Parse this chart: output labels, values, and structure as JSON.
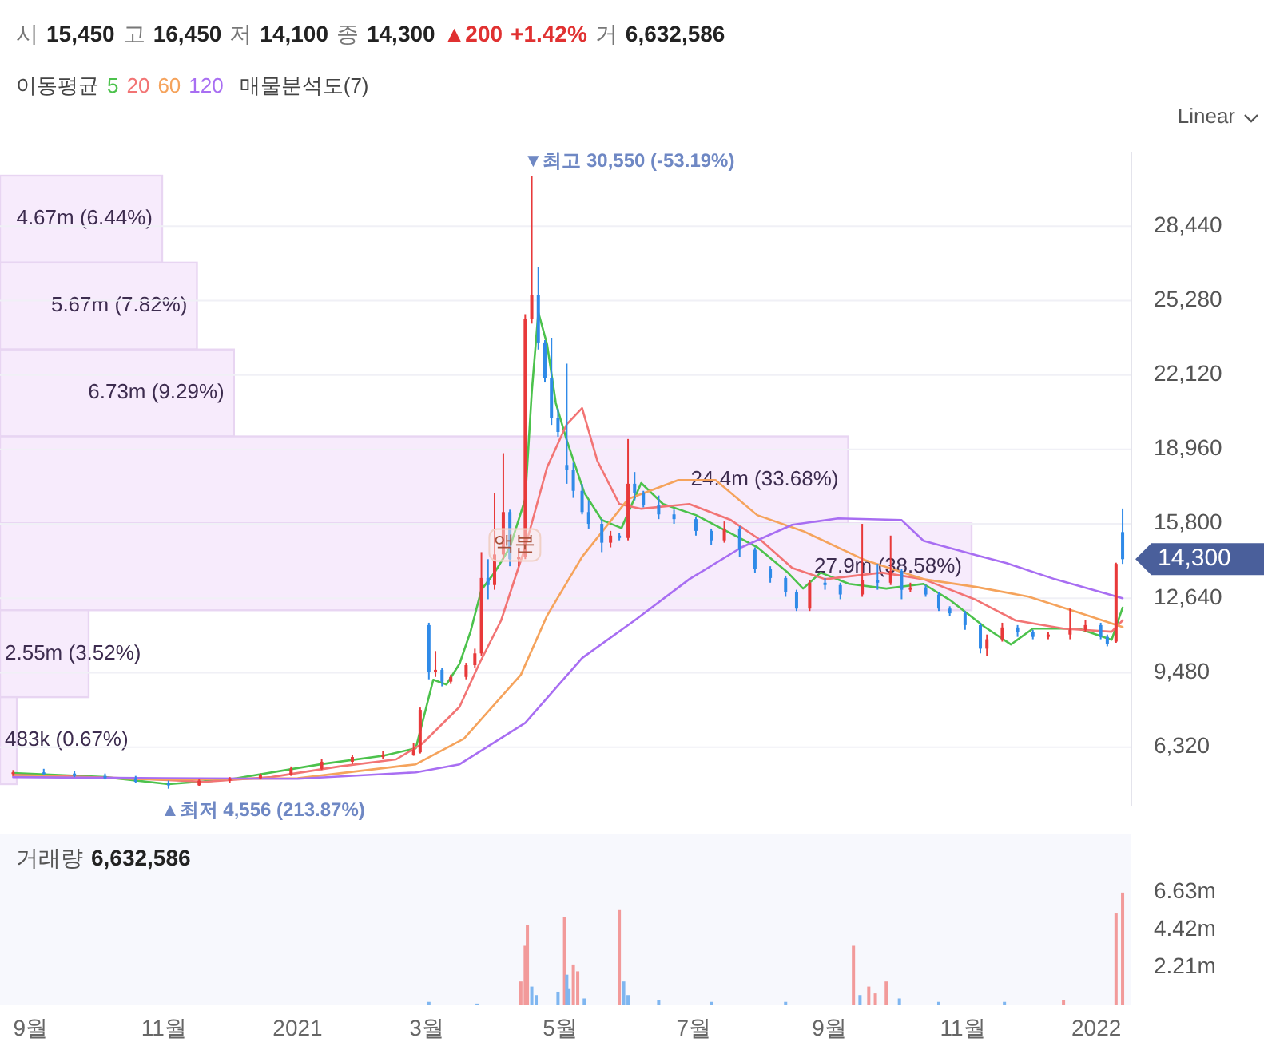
{
  "chart_data": [
    {
      "type": "candlestick",
      "subtitle": "시 15,450 고 16,450 저 14,100 종 14,300 ▲200 +1.42% 거 6,632,586",
      "legend_title": "이동평균",
      "legend": "top left",
      "x": [
        "2020-08-24",
        "2020-09-07",
        "2020-09-21",
        "2020-10-05",
        "2020-10-19",
        "2020-11-03",
        "2020-11-17",
        "2020-12-01",
        "2020-12-15",
        "2020-12-29",
        "2021-01-12",
        "2021-01-26",
        "2021-02-09",
        "2021-02-23",
        "2021-02-26",
        "2021-03-02",
        "2021-03-05",
        "2021-03-08",
        "2021-03-12",
        "2021-03-19",
        "2021-03-23",
        "2021-03-26",
        "2021-03-29",
        "2021-04-01",
        "2021-04-05",
        "2021-04-08",
        "2021-04-12",
        "2021-04-15",
        "2021-04-18",
        "2021-04-21",
        "2021-04-24",
        "2021-04-27",
        "2021-04-30",
        "2021-05-04",
        "2021-05-07",
        "2021-05-11",
        "2021-05-14",
        "2021-05-20",
        "2021-05-24",
        "2021-05-28",
        "2021-06-01",
        "2021-06-04",
        "2021-06-08",
        "2021-06-15",
        "2021-06-22",
        "2021-07-02",
        "2021-07-09",
        "2021-07-15",
        "2021-07-22",
        "2021-07-29",
        "2021-08-05",
        "2021-08-12",
        "2021-08-17",
        "2021-08-23",
        "2021-08-30",
        "2021-09-06",
        "2021-09-16",
        "2021-09-23",
        "2021-09-29",
        "2021-10-04",
        "2021-10-08",
        "2021-10-15",
        "2021-10-21",
        "2021-10-26",
        "2021-11-02",
        "2021-11-09",
        "2021-11-12",
        "2021-11-19",
        "2021-11-26",
        "2021-12-03",
        "2021-12-10",
        "2021-12-20",
        "2021-12-27",
        "2022-01-03",
        "2022-01-06",
        "2022-01-10",
        "2022-01-13"
      ],
      "ohlc": [
        [
          5200,
          5350,
          5100,
          5250
        ],
        [
          5250,
          5400,
          5150,
          5200
        ],
        [
          5200,
          5300,
          5050,
          5100
        ],
        [
          5100,
          5200,
          4950,
          5000
        ],
        [
          5000,
          5100,
          4800,
          4850
        ],
        [
          4800,
          4900,
          4556,
          4700
        ],
        [
          4700,
          4950,
          4650,
          4900
        ],
        [
          4900,
          5050,
          4800,
          5000
        ],
        [
          5000,
          5200,
          4950,
          5150
        ],
        [
          5150,
          5500,
          5100,
          5400
        ],
        [
          5400,
          5800,
          5350,
          5700
        ],
        [
          5700,
          6000,
          5600,
          5900
        ],
        [
          5900,
          6150,
          5800,
          6000
        ],
        [
          6000,
          6500,
          5950,
          6200
        ],
        [
          6100,
          8000,
          6050,
          7900
        ],
        [
          11500,
          11600,
          9200,
          9500
        ],
        [
          9500,
          10400,
          9300,
          9600
        ],
        [
          9600,
          9700,
          8900,
          9100
        ],
        [
          9100,
          9400,
          9000,
          9300
        ],
        [
          9300,
          9900,
          9200,
          9800
        ],
        [
          9800,
          10500,
          9700,
          10300
        ],
        [
          10300,
          14600,
          10200,
          13500
        ],
        [
          13500,
          14300,
          12600,
          13200
        ],
        [
          13200,
          17100,
          13000,
          14500
        ],
        [
          14500,
          18800,
          14300,
          16300
        ],
        [
          16300,
          16400,
          14000,
          14300
        ],
        [
          14300,
          14700,
          14000,
          14400
        ],
        [
          14400,
          24700,
          14300,
          24500
        ],
        [
          24500,
          30550,
          24300,
          25500
        ],
        [
          25500,
          26700,
          23200,
          23500
        ],
        [
          23500,
          23600,
          21800,
          22000
        ],
        [
          22000,
          23700,
          20000,
          20300
        ],
        [
          20300,
          20700,
          19500,
          19700
        ],
        [
          18300,
          22600,
          17500,
          18100
        ],
        [
          18100,
          18400,
          16900,
          17200
        ],
        [
          17200,
          17500,
          16200,
          16300
        ],
        [
          16300,
          16800,
          15600,
          15800
        ],
        [
          15800,
          16000,
          14600,
          15000
        ],
        [
          15000,
          15500,
          14800,
          15300
        ],
        [
          15300,
          15400,
          15100,
          15200
        ],
        [
          15200,
          19400,
          15100,
          17500
        ],
        [
          17500,
          18000,
          16800,
          17100
        ],
        [
          17100,
          17200,
          16500,
          16600
        ],
        [
          16600,
          17000,
          16000,
          16200
        ],
        [
          16200,
          16400,
          15800,
          16000
        ],
        [
          16000,
          16100,
          15300,
          15500
        ],
        [
          15500,
          15600,
          14900,
          15100
        ],
        [
          15100,
          15900,
          15000,
          15600
        ],
        [
          15600,
          15700,
          14400,
          14700
        ],
        [
          14700,
          14800,
          13700,
          13900
        ],
        [
          13900,
          14000,
          13300,
          13500
        ],
        [
          13500,
          13600,
          12700,
          12900
        ],
        [
          12900,
          13000,
          12100,
          12200
        ],
        [
          12200,
          13400,
          12100,
          13300
        ],
        [
          13300,
          13500,
          13000,
          13200
        ],
        [
          13200,
          13300,
          12600,
          12800
        ],
        [
          12800,
          15800,
          12700,
          13400
        ],
        [
          13400,
          14100,
          13000,
          13300
        ],
        [
          13300,
          15300,
          13200,
          13800
        ],
        [
          13800,
          13900,
          12600,
          13000
        ],
        [
          13000,
          13300,
          12900,
          13100
        ],
        [
          13100,
          13200,
          12700,
          12800
        ],
        [
          12800,
          12900,
          12100,
          12200
        ],
        [
          12200,
          12300,
          11900,
          12000
        ],
        [
          12000,
          12100,
          11300,
          11500
        ],
        [
          11500,
          11600,
          10300,
          10500
        ],
        [
          10500,
          11100,
          10200,
          10900
        ],
        [
          10900,
          11600,
          10800,
          11400
        ],
        [
          11400,
          11500,
          11000,
          11200
        ],
        [
          11200,
          11300,
          10900,
          11000
        ],
        [
          11000,
          11200,
          10900,
          11100
        ],
        [
          11100,
          12200,
          10900,
          11300
        ],
        [
          11300,
          11700,
          11200,
          11500
        ],
        [
          11500,
          11600,
          10900,
          11000
        ],
        [
          11000,
          11100,
          10600,
          10700
        ],
        [
          10800,
          14150,
          10750,
          14100
        ],
        [
          15450,
          16450,
          14100,
          14300
        ]
      ],
      "series": [
        {
          "name": "5",
          "type": "line",
          "color": "#4cc24c",
          "x": [
            "2020-08-24",
            "2020-10-05",
            "2020-11-03",
            "2020-12-01",
            "2021-01-12",
            "2021-02-09",
            "2021-02-24",
            "2021-03-04",
            "2021-03-10",
            "2021-03-16",
            "2021-03-21",
            "2021-03-26",
            "2021-04-01",
            "2021-04-08",
            "2021-04-15",
            "2021-04-18",
            "2021-04-21",
            "2021-04-25",
            "2021-04-29",
            "2021-05-04",
            "2021-05-12",
            "2021-05-20",
            "2021-05-29",
            "2021-06-07",
            "2021-06-17",
            "2021-07-02",
            "2021-07-16",
            "2021-07-30",
            "2021-08-13",
            "2021-08-20",
            "2021-08-28",
            "2021-09-10",
            "2021-09-27",
            "2021-10-14",
            "2021-10-26",
            "2021-11-11",
            "2021-11-23",
            "2021-12-03",
            "2021-12-24",
            "2022-01-08",
            "2022-01-13"
          ],
          "values": [
            5220,
            5050,
            4750,
            4950,
            5600,
            5950,
            6270,
            9180,
            8980,
            9860,
            11220,
            13000,
            13730,
            14800,
            16850,
            21390,
            24780,
            23420,
            20920,
            19350,
            17120,
            15960,
            15620,
            17530,
            16640,
            16170,
            15490,
            14810,
            13730,
            13050,
            13730,
            13250,
            13050,
            13250,
            12570,
            11420,
            10680,
            11350,
            11350,
            10880,
            12240
          ]
        },
        {
          "name": "20",
          "type": "line",
          "color": "#f27474",
          "x": [
            "2020-08-24",
            "2020-10-15",
            "2020-11-20",
            "2020-12-20",
            "2021-01-20",
            "2021-02-15",
            "2021-02-27",
            "2021-03-16",
            "2021-03-25",
            "2021-04-04",
            "2021-04-15",
            "2021-04-25",
            "2021-05-04",
            "2021-05-11",
            "2021-05-18",
            "2021-05-28",
            "2021-06-07",
            "2021-06-29",
            "2021-07-18",
            "2021-08-01",
            "2021-08-15",
            "2021-08-30",
            "2021-09-25",
            "2021-10-14",
            "2021-11-07",
            "2021-11-25",
            "2021-12-17",
            "2022-01-08",
            "2022-01-13"
          ],
          "values": [
            5150,
            5000,
            4850,
            5050,
            5500,
            5800,
            6470,
            8030,
            9860,
            11700,
            14810,
            18200,
            20030,
            20710,
            18470,
            16640,
            16440,
            16640,
            15960,
            15080,
            13930,
            13450,
            13730,
            13450,
            12570,
            11700,
            11350,
            11220,
            11700
          ]
        },
        {
          "name": "60",
          "type": "line",
          "color": "#f5a35c",
          "x": [
            "2020-08-24",
            "2020-11-01",
            "2021-01-01",
            "2021-02-24",
            "2021-03-18",
            "2021-04-13",
            "2021-04-25",
            "2021-05-11",
            "2021-06-01",
            "2021-06-24",
            "2021-07-11",
            "2021-07-30",
            "2021-08-20",
            "2021-09-17",
            "2021-10-14",
            "2021-11-07",
            "2021-12-01",
            "2021-12-24",
            "2022-01-13"
          ],
          "values": [
            5100,
            4950,
            5000,
            5590,
            6680,
            9390,
            11900,
            14400,
            16850,
            17660,
            17660,
            16170,
            15490,
            14270,
            13450,
            13120,
            12710,
            12030,
            11420
          ]
        },
        {
          "name": "120",
          "type": "line",
          "color": "#a86ef2",
          "x": [
            "2020-08-24",
            "2020-11-01",
            "2021-01-01",
            "2021-02-24",
            "2021-03-16",
            "2021-04-15",
            "2021-05-11",
            "2021-06-04",
            "2021-06-29",
            "2021-07-23",
            "2021-08-15",
            "2021-09-05",
            "2021-10-04",
            "2021-10-14",
            "2021-11-07",
            "2021-11-21",
            "2021-12-13",
            "2022-01-13"
          ],
          "values": [
            5050,
            5000,
            4980,
            5250,
            5590,
            7350,
            10100,
            11700,
            13450,
            14810,
            15760,
            16030,
            15960,
            15080,
            14470,
            14130,
            13450,
            12640
          ]
        }
      ],
      "xlim": [
        "2020-08-18",
        "2022-01-17"
      ],
      "ylim": [
        3800,
        31600
      ],
      "yticks": [
        {
          "value": 6320,
          "label": "6,320"
        },
        {
          "value": 9480,
          "label": "9,480"
        },
        {
          "value": 12640,
          "label": "12,640"
        },
        {
          "value": 15800,
          "label": "15,800"
        },
        {
          "value": 18960,
          "label": "18,960"
        },
        {
          "value": 22120,
          "label": "22,120"
        },
        {
          "value": 25280,
          "label": "25,280"
        },
        {
          "value": 28440,
          "label": "28,440"
        }
      ],
      "grid": "y",
      "tick_labels": "y",
      "annotations": [
        {
          "text": "▼최고 30,550 (-53.19%)",
          "x": "2021-04-18",
          "y": 30550
        },
        {
          "text": "▲최저 4,556 (213.87%)",
          "x": "2020-11-03",
          "y": 4556
        },
        {
          "text": "액분",
          "x": "2021-04-11",
          "y": 14900
        },
        {
          "text": "14,300",
          "x": "2022-01-13",
          "y": 14300
        },
        "Linear"
      ]
    },
    {
      "type": "bar",
      "orientation": "horizontal",
      "title": "매물분석도(7)",
      "color": "#f7ebfc",
      "categories": [
        null,
        null,
        null,
        null,
        null,
        null,
        null
      ],
      "values": [
        6.44,
        7.82,
        9.29,
        33.68,
        38.58,
        3.52,
        0.67
      ],
      "value_labels": [
        "4.67m (6.44%)",
        "5.67m (7.82%)",
        "6.73m (9.29%)",
        "24.4m (33.68%)",
        "27.9m (38.58%)",
        "2.55m (3.52%)",
        "483k (0.67%)"
      ]
    },
    {
      "type": "bar",
      "title": "거래량 6,632,586",
      "x": [
        "2021-03-02",
        "2021-03-24",
        "2021-04-13",
        "2021-04-15",
        "2021-04-16",
        "2021-04-18",
        "2021-04-20",
        "2021-04-30",
        "2021-05-03",
        "2021-05-04",
        "2021-05-05",
        "2021-05-07",
        "2021-05-09",
        "2021-05-12",
        "2021-05-28",
        "2021-05-30",
        "2021-06-01",
        "2021-06-15",
        "2021-07-09",
        "2021-08-12",
        "2021-09-12",
        "2021-09-15",
        "2021-09-19",
        "2021-09-22",
        "2021-09-27",
        "2021-10-03",
        "2021-10-21",
        "2021-11-20",
        "2021-12-17",
        "2022-01-10",
        "2022-01-13"
      ],
      "values": [
        0.2,
        0.1,
        1.4,
        3.5,
        4.7,
        1.1,
        0.6,
        0.8,
        5.2,
        1.8,
        1.0,
        2.4,
        2.0,
        0.4,
        5.6,
        1.4,
        0.6,
        0.3,
        0.2,
        0.2,
        3.5,
        0.6,
        1.1,
        0.7,
        1.4,
        0.4,
        0.2,
        0.2,
        0.3,
        5.4,
        6.63
      ],
      "colors": [
        "#7fb6f0",
        "#7fb6f0",
        "#f29a9a",
        "#f29a9a",
        "#f29a9a",
        "#7fb6f0",
        "#7fb6f0",
        "#7fb6f0",
        "#f29a9a",
        "#7fb6f0",
        "#7fb6f0",
        "#f29a9a",
        "#f29a9a",
        "#7fb6f0",
        "#f29a9a",
        "#7fb6f0",
        "#7fb6f0",
        "#7fb6f0",
        "#7fb6f0",
        "#7fb6f0",
        "#f29a9a",
        "#7fb6f0",
        "#f29a9a",
        "#f29a9a",
        "#f29a9a",
        "#7fb6f0",
        "#7fb6f0",
        "#7fb6f0",
        "#f29a9a",
        "#f29a9a",
        "#f29a9a"
      ],
      "xlim": [
        "2020-08-18",
        "2022-01-17"
      ],
      "xticks": [
        {
          "value": "2020-09-01",
          "label": "9월"
        },
        {
          "value": "2020-11-01",
          "label": "11월"
        },
        {
          "value": "2021-01-01",
          "label": "2021"
        },
        {
          "value": "2021-03-01",
          "label": "3월"
        },
        {
          "value": "2021-05-01",
          "label": "5월"
        },
        {
          "value": "2021-07-01",
          "label": "7월"
        },
        {
          "value": "2021-09-01",
          "label": "9월"
        },
        {
          "value": "2021-11-01",
          "label": "11월"
        },
        {
          "value": "2022-01-01",
          "label": "2022"
        }
      ],
      "ylim": [
        0,
        10.1
      ],
      "yticks": [
        {
          "value": 2.21,
          "label": "2.21m"
        },
        {
          "value": 4.42,
          "label": "4.42m"
        },
        {
          "value": 6.63,
          "label": "6.63m"
        }
      ]
    }
  ]
}
